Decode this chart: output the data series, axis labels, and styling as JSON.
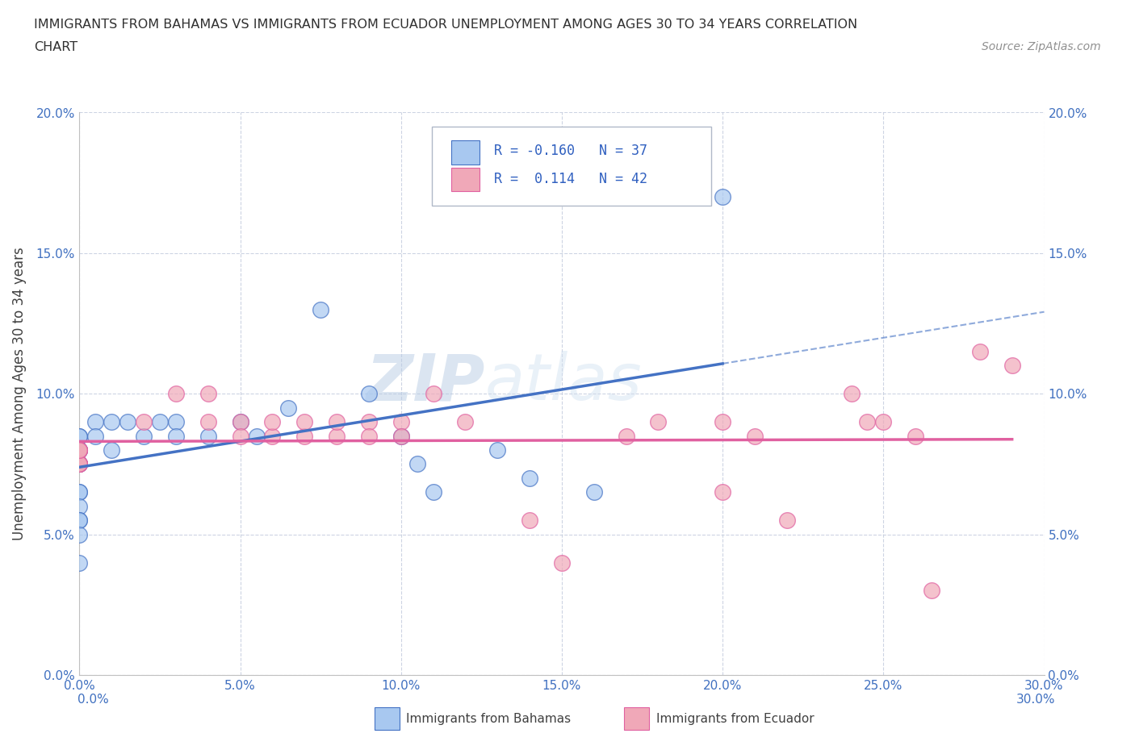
{
  "title_line1": "IMMIGRANTS FROM BAHAMAS VS IMMIGRANTS FROM ECUADOR UNEMPLOYMENT AMONG AGES 30 TO 34 YEARS CORRELATION",
  "title_line2": "CHART",
  "source_text": "Source: ZipAtlas.com",
  "ylabel": "Unemployment Among Ages 30 to 34 years",
  "xlim": [
    0.0,
    0.3
  ],
  "ylim": [
    0.0,
    0.2
  ],
  "xtick_labels": [
    "0.0%",
    "5.0%",
    "10.0%",
    "15.0%",
    "20.0%",
    "25.0%",
    "30.0%"
  ],
  "xtick_vals": [
    0.0,
    0.05,
    0.1,
    0.15,
    0.2,
    0.25,
    0.3
  ],
  "ytick_labels": [
    "0.0%",
    "5.0%",
    "10.0%",
    "15.0%",
    "20.0%"
  ],
  "ytick_vals": [
    0.0,
    0.05,
    0.1,
    0.15,
    0.2
  ],
  "color_bahamas": "#a8c8f0",
  "color_ecuador": "#f0a8b8",
  "line_color_bahamas": "#4472c4",
  "line_color_ecuador": "#e060a0",
  "bahamas_x": [
    0.0,
    0.0,
    0.0,
    0.0,
    0.0,
    0.0,
    0.0,
    0.0,
    0.0,
    0.0,
    0.0,
    0.0,
    0.0,
    0.0,
    0.0,
    0.005,
    0.005,
    0.01,
    0.01,
    0.015,
    0.02,
    0.025,
    0.03,
    0.03,
    0.04,
    0.05,
    0.055,
    0.065,
    0.075,
    0.09,
    0.1,
    0.105,
    0.11,
    0.13,
    0.14,
    0.16,
    0.2
  ],
  "bahamas_y": [
    0.075,
    0.075,
    0.075,
    0.08,
    0.08,
    0.08,
    0.085,
    0.085,
    0.065,
    0.065,
    0.06,
    0.055,
    0.055,
    0.05,
    0.04,
    0.09,
    0.085,
    0.09,
    0.08,
    0.09,
    0.085,
    0.09,
    0.09,
    0.085,
    0.085,
    0.09,
    0.085,
    0.095,
    0.13,
    0.1,
    0.085,
    0.075,
    0.065,
    0.08,
    0.07,
    0.065,
    0.17
  ],
  "ecuador_x": [
    0.0,
    0.0,
    0.0,
    0.0,
    0.0,
    0.0,
    0.0,
    0.0,
    0.0,
    0.02,
    0.03,
    0.04,
    0.04,
    0.05,
    0.05,
    0.06,
    0.06,
    0.07,
    0.07,
    0.08,
    0.08,
    0.09,
    0.09,
    0.1,
    0.1,
    0.11,
    0.12,
    0.14,
    0.15,
    0.17,
    0.18,
    0.2,
    0.2,
    0.21,
    0.22,
    0.24,
    0.245,
    0.25,
    0.26,
    0.265,
    0.28,
    0.29
  ],
  "ecuador_y": [
    0.08,
    0.08,
    0.075,
    0.075,
    0.075,
    0.075,
    0.075,
    0.08,
    0.08,
    0.09,
    0.1,
    0.09,
    0.1,
    0.09,
    0.085,
    0.085,
    0.09,
    0.085,
    0.09,
    0.085,
    0.09,
    0.09,
    0.085,
    0.09,
    0.085,
    0.1,
    0.09,
    0.055,
    0.04,
    0.085,
    0.09,
    0.065,
    0.09,
    0.085,
    0.055,
    0.1,
    0.09,
    0.09,
    0.085,
    0.03,
    0.115,
    0.11
  ]
}
